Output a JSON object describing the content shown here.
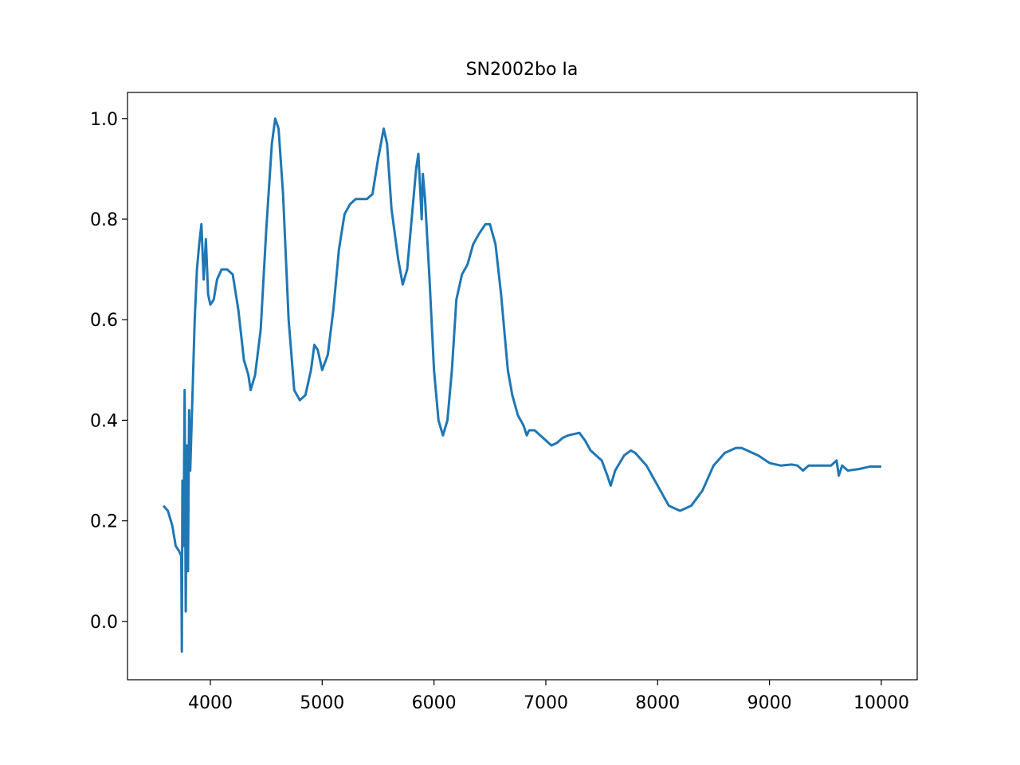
{
  "chart_data": {
    "type": "line",
    "title": "SN2002bo Ia",
    "color": "#1f77b4",
    "x": [
      3580,
      3620,
      3660,
      3690,
      3720,
      3740,
      3745,
      3750,
      3760,
      3770,
      3780,
      3790,
      3800,
      3810,
      3820,
      3840,
      3860,
      3880,
      3900,
      3920,
      3940,
      3960,
      3980,
      4000,
      4030,
      4060,
      4100,
      4150,
      4200,
      4250,
      4300,
      4340,
      4360,
      4400,
      4450,
      4500,
      4550,
      4580,
      4610,
      4650,
      4700,
      4750,
      4800,
      4850,
      4900,
      4930,
      4960,
      5000,
      5050,
      5100,
      5150,
      5200,
      5250,
      5300,
      5350,
      5400,
      5450,
      5500,
      5550,
      5580,
      5620,
      5680,
      5720,
      5760,
      5800,
      5840,
      5860,
      5890,
      5900,
      5920,
      5960,
      6000,
      6040,
      6080,
      6120,
      6160,
      6200,
      6250,
      6300,
      6350,
      6400,
      6460,
      6500,
      6550,
      6600,
      6660,
      6700,
      6750,
      6800,
      6830,
      6850,
      6900,
      6950,
      7000,
      7050,
      7100,
      7150,
      7200,
      7300,
      7350,
      7400,
      7450,
      7500,
      7550,
      7580,
      7620,
      7700,
      7760,
      7800,
      7900,
      8000,
      8100,
      8200,
      8300,
      8400,
      8500,
      8600,
      8700,
      8750,
      8800,
      8900,
      9000,
      9100,
      9200,
      9250,
      9300,
      9350,
      9450,
      9550,
      9600,
      9620,
      9650,
      9700,
      9800,
      9900,
      10000
    ],
    "values": [
      0.23,
      0.22,
      0.19,
      0.15,
      0.14,
      0.13,
      -0.06,
      0.28,
      0.15,
      0.46,
      0.02,
      0.35,
      0.1,
      0.42,
      0.3,
      0.45,
      0.6,
      0.7,
      0.75,
      0.79,
      0.68,
      0.76,
      0.65,
      0.63,
      0.64,
      0.68,
      0.7,
      0.7,
      0.69,
      0.62,
      0.52,
      0.49,
      0.46,
      0.49,
      0.58,
      0.78,
      0.95,
      1.0,
      0.98,
      0.85,
      0.6,
      0.46,
      0.44,
      0.45,
      0.5,
      0.55,
      0.54,
      0.5,
      0.53,
      0.62,
      0.74,
      0.81,
      0.83,
      0.84,
      0.84,
      0.84,
      0.85,
      0.92,
      0.98,
      0.95,
      0.82,
      0.72,
      0.67,
      0.7,
      0.8,
      0.9,
      0.93,
      0.8,
      0.89,
      0.84,
      0.68,
      0.5,
      0.4,
      0.37,
      0.4,
      0.5,
      0.64,
      0.69,
      0.71,
      0.75,
      0.77,
      0.79,
      0.79,
      0.75,
      0.65,
      0.5,
      0.45,
      0.41,
      0.39,
      0.37,
      0.38,
      0.38,
      0.37,
      0.36,
      0.35,
      0.355,
      0.365,
      0.37,
      0.375,
      0.36,
      0.34,
      0.33,
      0.32,
      0.29,
      0.27,
      0.3,
      0.33,
      0.34,
      0.335,
      0.31,
      0.27,
      0.23,
      0.22,
      0.23,
      0.26,
      0.31,
      0.335,
      0.345,
      0.345,
      0.34,
      0.33,
      0.315,
      0.31,
      0.312,
      0.31,
      0.3,
      0.31,
      0.31,
      0.31,
      0.32,
      0.29,
      0.31,
      0.3,
      0.303,
      0.308,
      0.308
    ],
    "xlim": [
      3259,
      10321
    ],
    "xticks": [
      4000,
      5000,
      6000,
      7000,
      8000,
      9000,
      10000
    ],
    "ylim": [
      -0.116,
      1.052
    ],
    "yticks": [
      {
        "value": 0,
        "label": "0.0"
      },
      {
        "value": 0.2,
        "label": "0.2"
      },
      {
        "value": 0.4,
        "label": "0.4"
      },
      {
        "value": 0.6,
        "label": "0.6"
      },
      {
        "value": 0.8,
        "label": "0.8"
      },
      {
        "value": 1,
        "label": "1.0"
      }
    ]
  }
}
